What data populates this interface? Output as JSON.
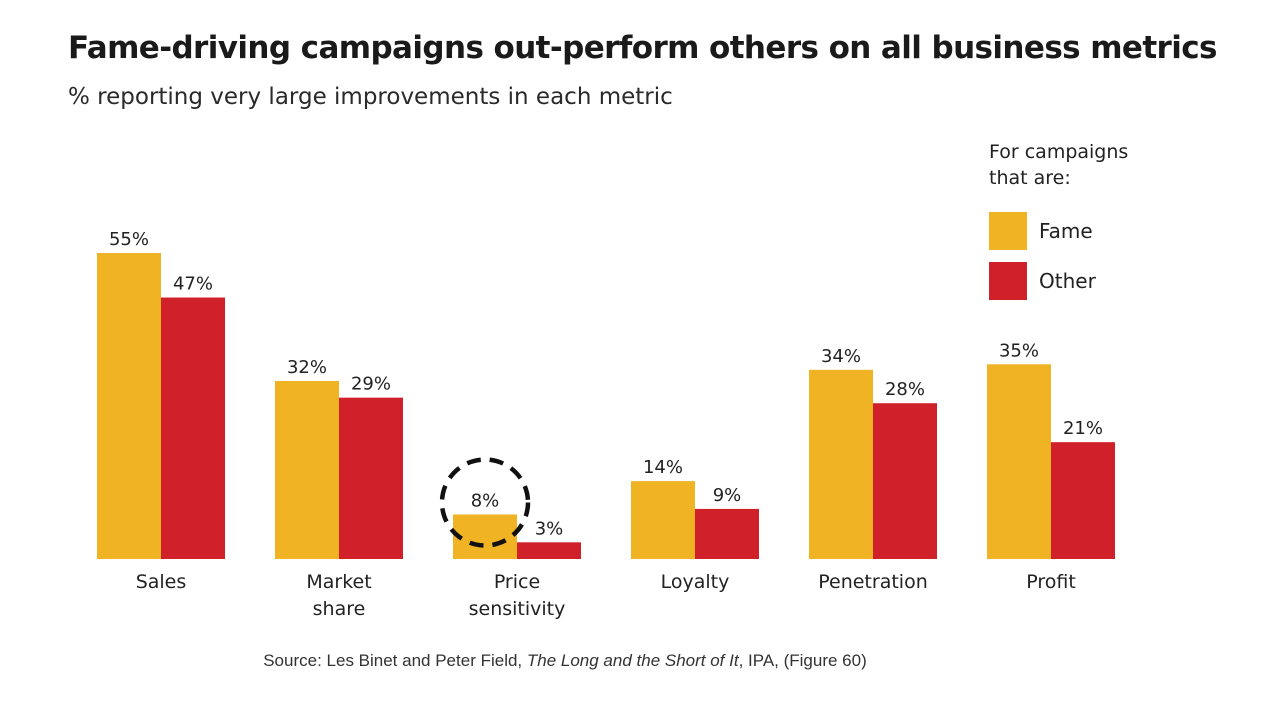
{
  "title": "Fame-driving campaigns out-perform others on all business metrics",
  "subtitle": "% reporting very large improvements in each metric",
  "legend": {
    "title_line1": "For campaigns",
    "title_line2": "that are:",
    "items": [
      {
        "label": "Fame",
        "color": "#F0B323"
      },
      {
        "label": "Other",
        "color": "#D0202A"
      }
    ]
  },
  "source": {
    "prefix": "Source: Les Binet and Peter Field, ",
    "italic": "The Long and the Short of It",
    "suffix": ", IPA, (Figure 60)"
  },
  "annotation": {
    "highlight": "dashed-circle",
    "category": "Price sensitivity",
    "series": "Fame"
  },
  "chart_data": {
    "type": "bar",
    "categories": [
      "Sales",
      "Market share",
      "Price sensitivity",
      "Loyalty",
      "Penetration",
      "Profit"
    ],
    "category_lines": [
      [
        "Sales"
      ],
      [
        "Market",
        "share"
      ],
      [
        "Price",
        "sensitivity"
      ],
      [
        "Loyalty"
      ],
      [
        "Penetration"
      ],
      [
        "Profit"
      ]
    ],
    "series": [
      {
        "name": "Fame",
        "color": "#F0B323",
        "values": [
          55,
          32,
          8,
          14,
          34,
          35
        ],
        "labels": [
          "55%",
          "32%",
          "8%",
          "14%",
          "34%",
          "35%"
        ]
      },
      {
        "name": "Other",
        "color": "#D0202A",
        "values": [
          47,
          29,
          3,
          9,
          28,
          21
        ],
        "labels": [
          "47%",
          "29%",
          "3%",
          "9%",
          "28%",
          "21%"
        ]
      }
    ],
    "title": "Fame-driving campaigns out-perform others on all business metrics",
    "subtitle": "% reporting very large improvements in each metric",
    "ylim": [
      0,
      55
    ],
    "grid": false,
    "legend_position": "top-right"
  }
}
